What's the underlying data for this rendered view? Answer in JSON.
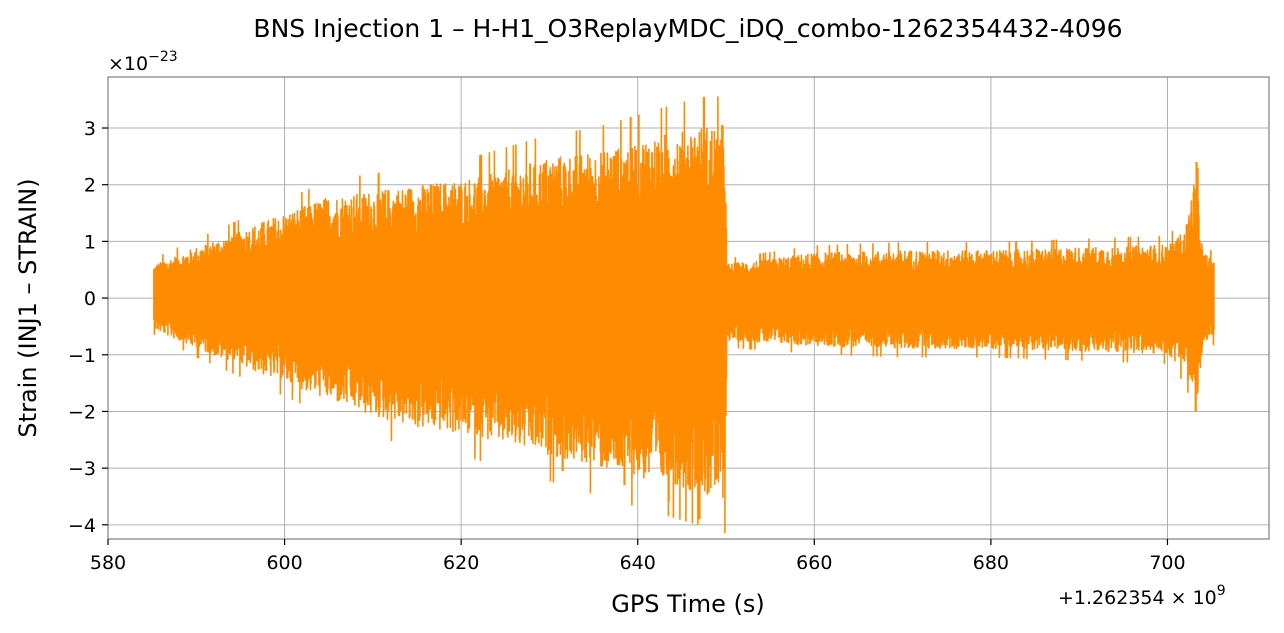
{
  "chart_data": {
    "type": "line",
    "title": "BNS Injection 1 – H-H1_O3ReplayMDC_iDQ_combo-1262354432-4096",
    "xlabel": "GPS Time (s)",
    "ylabel": "Strain (INJ1 – STRAIN)",
    "x_offset_label": "+1.262354 × 10",
    "x_offset_exp": "9",
    "y_scale_label": "×10",
    "y_scale_exp": "−23",
    "xlim": [
      580,
      711.5
    ],
    "ylim": [
      -4.25,
      3.9
    ],
    "x_ticks": [
      580,
      600,
      620,
      640,
      660,
      680,
      700
    ],
    "x_tick_labels": [
      "580",
      "600",
      "620",
      "640",
      "660",
      "680",
      "700"
    ],
    "y_ticks": [
      -4,
      -3,
      -2,
      -1,
      0,
      1,
      2,
      3
    ],
    "y_tick_labels": [
      "−4",
      "−3",
      "−2",
      "−1",
      "0",
      "1",
      "2",
      "3"
    ],
    "grid": true,
    "series": [
      {
        "color": "#ff8c00",
        "x_start": 585.2,
        "x_end": 705.3,
        "envelope": {
          "x": [
            585.2,
            590,
            595,
            600,
            605,
            610,
            615,
            620,
            625,
            630,
            635,
            640,
            645,
            649.9,
            650.1,
            655,
            660,
            670,
            680,
            690,
            700,
            702,
            703.3,
            704,
            705.3
          ],
          "upper": [
            0.6,
            0.9,
            1.2,
            1.5,
            1.8,
            1.9,
            2.0,
            2.1,
            2.3,
            2.5,
            2.6,
            2.8,
            3.0,
            3.1,
            0.6,
            0.7,
            0.8,
            0.85,
            0.85,
            0.9,
            0.95,
            1.2,
            2.3,
            0.8,
            0.7
          ],
          "lower": [
            -0.55,
            -0.9,
            -1.2,
            -1.5,
            -1.8,
            -2.1,
            -2.3,
            -2.4,
            -2.6,
            -2.8,
            -3.0,
            -3.2,
            -3.4,
            -3.6,
            -0.75,
            -0.8,
            -0.85,
            -0.9,
            -0.9,
            -0.95,
            -1.0,
            -1.3,
            -1.9,
            -0.9,
            -0.7
          ]
        },
        "peaks": [
          {
            "x": 647.5,
            "y": 3.55
          },
          {
            "x": 647.0,
            "y": -3.9
          },
          {
            "x": 643.5,
            "y": -3.6
          },
          {
            "x": 638.5,
            "y": -3.3
          },
          {
            "x": 631.5,
            "y": -3.05
          },
          {
            "x": 703.3,
            "y": 2.4
          },
          {
            "x": 703.2,
            "y": -2.0
          }
        ]
      }
    ]
  }
}
